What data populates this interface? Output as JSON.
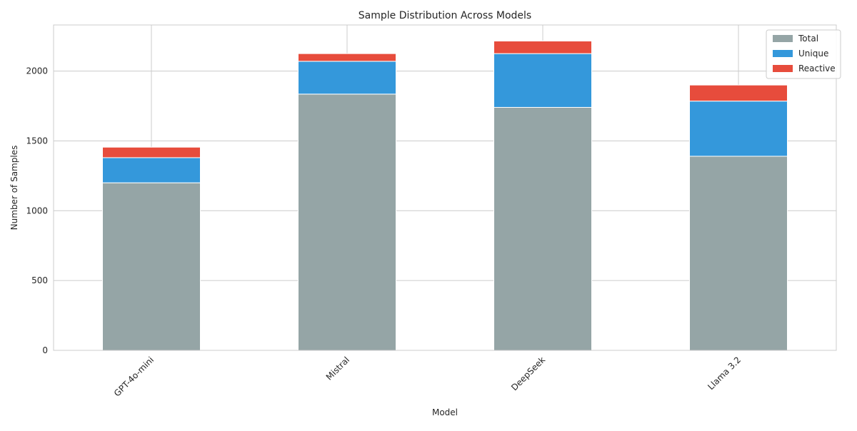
{
  "chart_data": {
    "type": "bar",
    "stacked": true,
    "title": "Sample Distribution Across Models",
    "xlabel": "Model",
    "ylabel": "Number of Samples",
    "categories": [
      "GPT-4o-mini",
      "Mistral",
      "DeepSeek",
      "Llama 3.2"
    ],
    "series": [
      {
        "name": "Total",
        "color": "#95a5a6",
        "values": [
          1200,
          1835,
          1740,
          1390
        ]
      },
      {
        "name": "Unique",
        "color": "#3498db",
        "values": [
          180,
          235,
          385,
          395
        ]
      },
      {
        "name": "Reactive",
        "color": "#e74c3c",
        "values": [
          75,
          55,
          90,
          115
        ]
      }
    ],
    "ylim": [
      0,
      2330
    ],
    "yticks": [
      0,
      500,
      1000,
      1500,
      2000
    ],
    "grid": true,
    "legend_position": "top-right"
  }
}
